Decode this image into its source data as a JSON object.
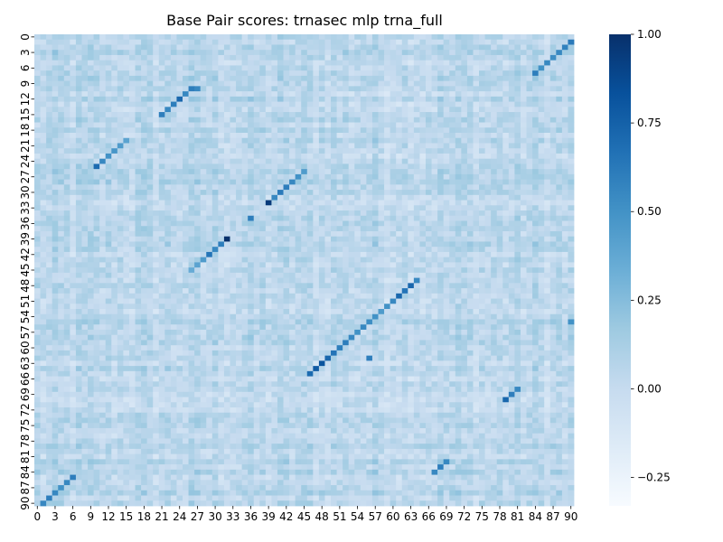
{
  "chart_data": {
    "type": "heatmap",
    "title": "Base Pair scores: trnasec mlp trna_full",
    "xlabel": "",
    "ylabel": "",
    "n": 91,
    "x_tick_labels": [
      "0",
      "3",
      "6",
      "9",
      "12",
      "15",
      "18",
      "21",
      "24",
      "27",
      "30",
      "33",
      "36",
      "39",
      "42",
      "45",
      "48",
      "51",
      "54",
      "57",
      "60",
      "63",
      "66",
      "69",
      "72",
      "75",
      "78",
      "81",
      "84",
      "87",
      "90"
    ],
    "y_tick_labels": [
      "0",
      "3",
      "6",
      "9",
      "12",
      "15",
      "18",
      "21",
      "24",
      "27",
      "30",
      "33",
      "36",
      "39",
      "42",
      "45",
      "48",
      "51",
      "54",
      "57",
      "60",
      "63",
      "66",
      "69",
      "72",
      "75",
      "78",
      "81",
      "84",
      "87",
      "90"
    ],
    "colormap": "Blues",
    "vmin": -0.33,
    "vmax": 1.0,
    "colorbar_ticks": [
      1.0,
      0.75,
      0.5,
      0.25,
      0.0,
      -0.25
    ],
    "colorbar_tick_labels": [
      "1.00",
      "0.75",
      "0.50",
      "0.25",
      "0.00",
      "−0.25"
    ],
    "background_value_range": [
      -0.15,
      0.25
    ],
    "highlighted_cells": [
      {
        "row": 1,
        "col": 90,
        "value": 0.62
      },
      {
        "row": 2,
        "col": 89,
        "value": 0.58
      },
      {
        "row": 3,
        "col": 88,
        "value": 0.55
      },
      {
        "row": 4,
        "col": 87,
        "value": 0.52
      },
      {
        "row": 5,
        "col": 86,
        "value": 0.55
      },
      {
        "row": 6,
        "col": 85,
        "value": 0.5
      },
      {
        "row": 7,
        "col": 84,
        "value": 0.6
      },
      {
        "row": 10,
        "col": 27,
        "value": 0.55
      },
      {
        "row": 10,
        "col": 26,
        "value": 0.6
      },
      {
        "row": 11,
        "col": 25,
        "value": 0.55
      },
      {
        "row": 12,
        "col": 24,
        "value": 0.72
      },
      {
        "row": 13,
        "col": 23,
        "value": 0.6
      },
      {
        "row": 14,
        "col": 22,
        "value": 0.55
      },
      {
        "row": 15,
        "col": 21,
        "value": 0.6
      },
      {
        "row": 20,
        "col": 15,
        "value": 0.4
      },
      {
        "row": 21,
        "col": 14,
        "value": 0.45
      },
      {
        "row": 22,
        "col": 13,
        "value": 0.48
      },
      {
        "row": 23,
        "col": 12,
        "value": 0.5
      },
      {
        "row": 24,
        "col": 11,
        "value": 0.55
      },
      {
        "row": 25,
        "col": 10,
        "value": 0.7
      },
      {
        "row": 26,
        "col": 45,
        "value": 0.45
      },
      {
        "row": 27,
        "col": 44,
        "value": 0.5
      },
      {
        "row": 28,
        "col": 43,
        "value": 0.55
      },
      {
        "row": 29,
        "col": 42,
        "value": 0.6
      },
      {
        "row": 30,
        "col": 41,
        "value": 0.62
      },
      {
        "row": 31,
        "col": 40,
        "value": 0.55
      },
      {
        "row": 32,
        "col": 39,
        "value": 0.95
      },
      {
        "row": 35,
        "col": 36,
        "value": 0.6
      },
      {
        "row": 39,
        "col": 32,
        "value": 1.0
      },
      {
        "row": 40,
        "col": 31,
        "value": 0.6
      },
      {
        "row": 41,
        "col": 30,
        "value": 0.55
      },
      {
        "row": 42,
        "col": 29,
        "value": 0.65
      },
      {
        "row": 43,
        "col": 28,
        "value": 0.45
      },
      {
        "row": 44,
        "col": 27,
        "value": 0.4
      },
      {
        "row": 45,
        "col": 26,
        "value": 0.35
      },
      {
        "row": 47,
        "col": 64,
        "value": 0.55
      },
      {
        "row": 48,
        "col": 63,
        "value": 0.72
      },
      {
        "row": 49,
        "col": 62,
        "value": 0.65
      },
      {
        "row": 50,
        "col": 61,
        "value": 0.72
      },
      {
        "row": 51,
        "col": 60,
        "value": 0.55
      },
      {
        "row": 52,
        "col": 59,
        "value": 0.5
      },
      {
        "row": 53,
        "col": 58,
        "value": 0.45
      },
      {
        "row": 54,
        "col": 57,
        "value": 0.5
      },
      {
        "row": 55,
        "col": 56,
        "value": 0.52
      },
      {
        "row": 56,
        "col": 55,
        "value": 0.55
      },
      {
        "row": 57,
        "col": 54,
        "value": 0.5
      },
      {
        "row": 58,
        "col": 53,
        "value": 0.55
      },
      {
        "row": 59,
        "col": 52,
        "value": 0.6
      },
      {
        "row": 60,
        "col": 51,
        "value": 0.6
      },
      {
        "row": 61,
        "col": 50,
        "value": 0.65
      },
      {
        "row": 62,
        "col": 49,
        "value": 0.72
      },
      {
        "row": 63,
        "col": 48,
        "value": 0.82
      },
      {
        "row": 64,
        "col": 47,
        "value": 0.78
      },
      {
        "row": 65,
        "col": 46,
        "value": 0.7
      },
      {
        "row": 68,
        "col": 81,
        "value": 0.55
      },
      {
        "row": 69,
        "col": 80,
        "value": 0.6
      },
      {
        "row": 70,
        "col": 79,
        "value": 0.72
      },
      {
        "row": 82,
        "col": 69,
        "value": 0.55
      },
      {
        "row": 83,
        "col": 68,
        "value": 0.6
      },
      {
        "row": 84,
        "col": 67,
        "value": 0.55
      },
      {
        "row": 85,
        "col": 6,
        "value": 0.6
      },
      {
        "row": 86,
        "col": 5,
        "value": 0.55
      },
      {
        "row": 87,
        "col": 4,
        "value": 0.5
      },
      {
        "row": 88,
        "col": 3,
        "value": 0.55
      },
      {
        "row": 89,
        "col": 2,
        "value": 0.6
      },
      {
        "row": 90,
        "col": 1,
        "value": 0.55
      },
      {
        "row": 62,
        "col": 56,
        "value": 0.6
      },
      {
        "row": 55,
        "col": 90,
        "value": 0.5
      }
    ]
  }
}
